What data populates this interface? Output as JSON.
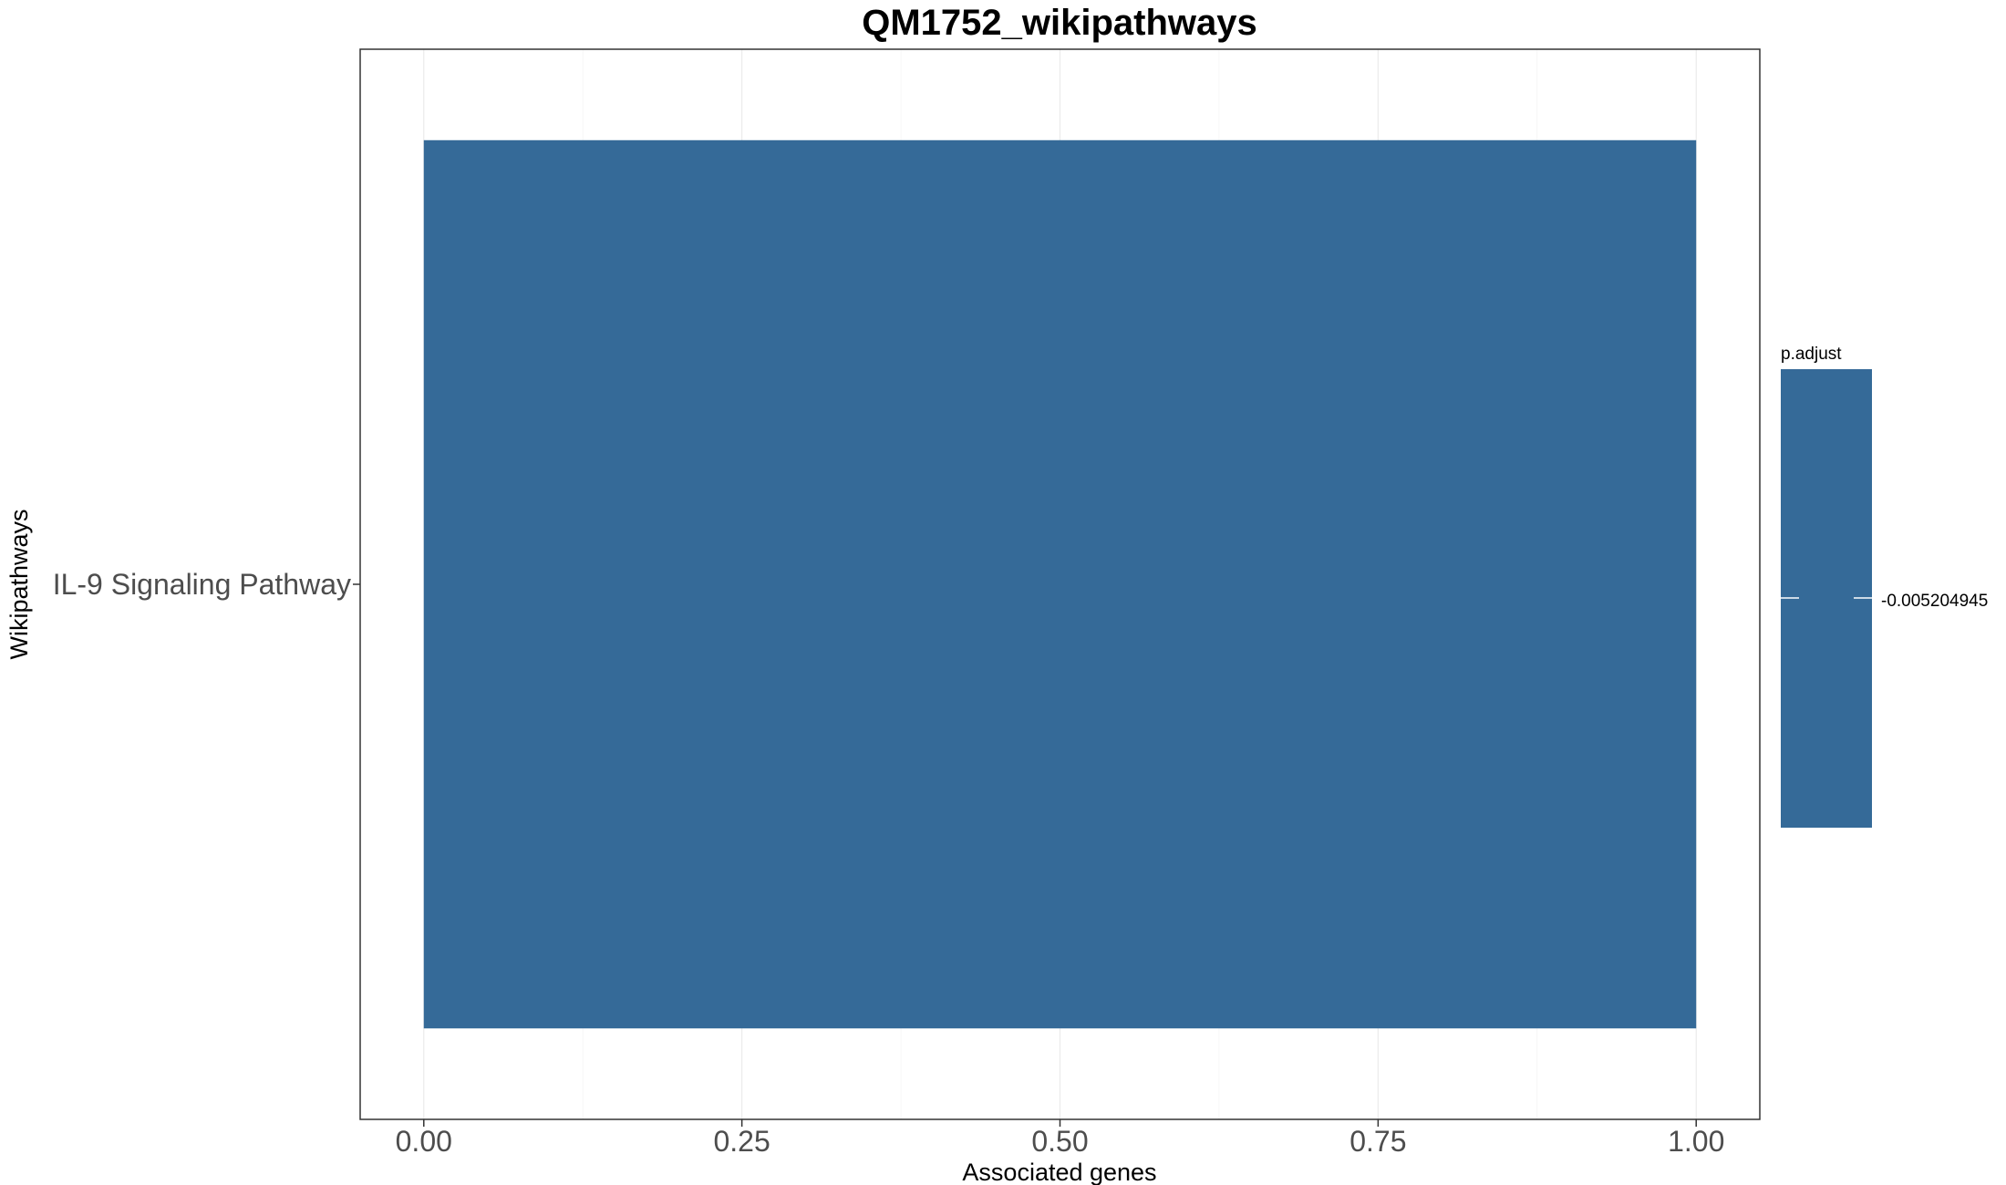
{
  "chart_data": {
    "type": "bar",
    "orientation": "horizontal",
    "title": "QM1752_wikipathways",
    "xlabel": "Associated genes",
    "ylabel": "Wikipathways",
    "categories": [
      "IL-9 Signaling Pathway"
    ],
    "values": [
      1.0
    ],
    "xlim": [
      -0.05,
      1.05
    ],
    "xticks": [
      0,
      0.25,
      0.5,
      0.75,
      1.0
    ],
    "xtick_labels": [
      "0.00",
      "0.25",
      "0.50",
      "0.75",
      "1.00"
    ],
    "grid": true,
    "bar_color": "#356a98",
    "legend": {
      "title": "p.adjust",
      "placement": "right",
      "value_label": "-0.005204945",
      "color": "#356a98"
    }
  }
}
